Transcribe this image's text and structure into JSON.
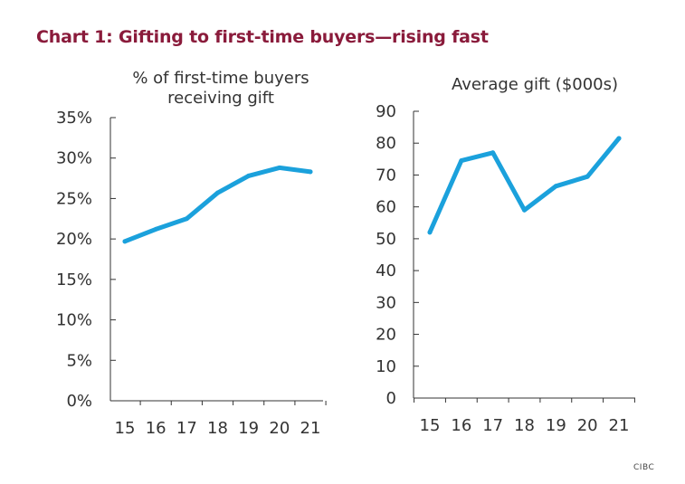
{
  "header": {
    "title": "Chart 1: Gifting to first-time buyers—rising fast"
  },
  "source_label": "CIBC",
  "colors": {
    "title": "#8a1b3b",
    "line": "#1ba1dc",
    "axis": "#333333"
  },
  "chart_data": [
    {
      "type": "line",
      "title_lines": [
        "% of first-time buyers",
        "receiving gift"
      ],
      "xlabel": "",
      "ylabel": "",
      "categories": [
        "15",
        "16",
        "17",
        "18",
        "19",
        "20",
        "21"
      ],
      "y_ticks": [
        "0%",
        "5%",
        "10%",
        "15%",
        "20%",
        "25%",
        "30%",
        "35%"
      ],
      "ylim": [
        0,
        35
      ],
      "series": [
        {
          "values": [
            19.7,
            21.2,
            22.5,
            25.7,
            27.8,
            28.8,
            28.3
          ]
        }
      ]
    },
    {
      "type": "line",
      "title_lines": [
        "Average gift ($000s)"
      ],
      "xlabel": "",
      "ylabel": "",
      "categories": [
        "15",
        "16",
        "17",
        "18",
        "19",
        "20",
        "21"
      ],
      "y_ticks": [
        "0",
        "10",
        "20",
        "30",
        "40",
        "50",
        "60",
        "70",
        "80",
        "90"
      ],
      "ylim": [
        0,
        90
      ],
      "series": [
        {
          "values": [
            52,
            74.5,
            77,
            59,
            66.5,
            69.5,
            81.5
          ]
        }
      ]
    }
  ]
}
